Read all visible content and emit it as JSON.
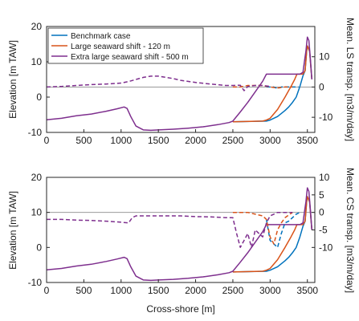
{
  "chart_data": [
    {
      "type": "line",
      "xlabel": "",
      "ylabel": "Elevation [m TAW]",
      "y2label": "Mean. LS transp. [m3/m/day]",
      "xlim": [
        0,
        3600
      ],
      "ylim": [
        -10,
        20
      ],
      "y2lim": [
        -15,
        20
      ],
      "xticks": [
        "0",
        "500",
        "1000",
        "1500",
        "2000",
        "2500",
        "3000",
        "3500"
      ],
      "yticks": [
        "-10",
        "0",
        "10",
        "20"
      ],
      "y2ticks": [
        "-10",
        "0",
        "10"
      ],
      "legend": {
        "placement": "top-left",
        "entries": [
          "Benchmark case",
          "Large seaward shift - 120 m",
          "Extra large seaward shift - 500 m"
        ]
      },
      "series": [
        {
          "name": "Benchmark case",
          "color": "#0072BD",
          "style": "solid",
          "axis": "left",
          "x": [
            2500,
            2950,
            3000,
            3100,
            3200,
            3250,
            3300,
            3350,
            3400,
            3440,
            3470,
            3490,
            3500,
            3530,
            3560
          ],
          "y": [
            -7,
            -6.8,
            -6.5,
            -5.5,
            -3.8,
            -2.8,
            -1.5,
            0,
            3,
            6,
            7.5,
            13,
            14.5,
            13,
            5
          ]
        },
        {
          "name": "Large seaward shift - 120 m",
          "color": "#D95319",
          "style": "solid",
          "axis": "left",
          "x": [
            2500,
            2900,
            2950,
            3000,
            3100,
            3200,
            3280,
            3330,
            3360,
            3400,
            3440,
            3470,
            3490,
            3500,
            3530,
            3560
          ],
          "y": [
            -7,
            -6.8,
            -6.5,
            -6,
            -3.5,
            0,
            3,
            5,
            6.5,
            6.5,
            6.5,
            7.5,
            13,
            14.5,
            13,
            5
          ]
        },
        {
          "name": "Extra large seaward shift - 500 m",
          "color": "#7E2F8E",
          "style": "solid",
          "axis": "left",
          "x": [
            0,
            200,
            400,
            600,
            800,
            950,
            1040,
            1080,
            1130,
            1200,
            1300,
            1400,
            1500,
            1700,
            1900,
            2100,
            2300,
            2450,
            2500,
            2600,
            2700,
            2800,
            2900,
            2950,
            3000,
            3200,
            3400,
            3440,
            3460,
            3480,
            3500,
            3520,
            3540,
            3560
          ],
          "y": [
            -6.4,
            -6,
            -5.3,
            -4.8,
            -4,
            -3.3,
            -2.8,
            -3.2,
            -5.5,
            -8.2,
            -9.3,
            -9.4,
            -9.3,
            -9.1,
            -8.8,
            -8.4,
            -7.8,
            -7.2,
            -6.8,
            -4.2,
            -1.5,
            1.5,
            4.5,
            6.5,
            6.5,
            6.5,
            6.5,
            7,
            10,
            13,
            17,
            16,
            11,
            5
          ]
        },
        {
          "name": "Benchmark case",
          "color": "#0072BD",
          "style": "dashed",
          "axis": "right",
          "x": [
            2950,
            3000,
            3050,
            3100,
            3150,
            3200,
            3250,
            3300,
            3340,
            3380
          ],
          "y": [
            0,
            0,
            0,
            -0.5,
            0,
            0,
            0,
            0,
            0,
            0
          ]
        },
        {
          "name": "Large seaward shift - 120 m",
          "color": "#D95319",
          "style": "dashed",
          "axis": "right",
          "x": [
            2500,
            2600,
            2700,
            2800,
            2900,
            3000,
            3100,
            3200,
            3300
          ],
          "y": [
            0,
            0,
            0.5,
            0.5,
            0.5,
            0,
            -0.3,
            0,
            0
          ]
        },
        {
          "name": "Extra large seaward shift - 500 m",
          "color": "#7E2F8E",
          "style": "dashed",
          "axis": "right",
          "x": [
            0,
            200,
            400,
            600,
            800,
            1000,
            1100,
            1200,
            1300,
            1400,
            1500,
            1600,
            1700,
            1800,
            2000,
            2200,
            2400,
            2500,
            2600,
            2650,
            2700,
            2800,
            2900,
            3000
          ],
          "y": [
            0,
            0.2,
            0.5,
            0.8,
            1,
            1.3,
            1.8,
            2.5,
            3.2,
            3.6,
            3.6,
            3.2,
            2.8,
            2.2,
            1.5,
            1,
            0.5,
            0.5,
            0.6,
            -1.2,
            0.2,
            0.5,
            0.5,
            0.2
          ]
        }
      ]
    },
    {
      "type": "line",
      "xlabel": "Cross-shore [m]",
      "ylabel": "Elevation [m TAW]",
      "y2label": "Mean. CS transp. [m3/m/day]",
      "xlim": [
        0,
        3600
      ],
      "ylim": [
        -10,
        20
      ],
      "y2lim": [
        -20,
        10
      ],
      "xticks": [
        "0",
        "500",
        "1000",
        "1500",
        "2000",
        "2500",
        "3000",
        "3500"
      ],
      "yticks": [
        "-10",
        "0",
        "10",
        "20"
      ],
      "y2ticks": [
        "-10",
        "-5",
        "0",
        "5",
        "10"
      ],
      "series": [
        {
          "name": "Benchmark case",
          "color": "#0072BD",
          "style": "solid",
          "axis": "left",
          "x": [
            2500,
            2950,
            3000,
            3100,
            3200,
            3250,
            3300,
            3350,
            3400,
            3440,
            3470,
            3490,
            3500,
            3530,
            3560
          ],
          "y": [
            -7,
            -6.8,
            -6.5,
            -5.5,
            -3.8,
            -2.8,
            -1.5,
            0,
            3,
            6,
            7.5,
            13,
            14.5,
            13,
            5
          ]
        },
        {
          "name": "Large seaward shift - 120 m",
          "color": "#D95319",
          "style": "solid",
          "axis": "left",
          "x": [
            2500,
            2900,
            2950,
            3000,
            3100,
            3200,
            3280,
            3330,
            3360,
            3400,
            3440,
            3470,
            3490,
            3500,
            3530,
            3560
          ],
          "y": [
            -7,
            -6.8,
            -6.5,
            -6,
            -3.5,
            0,
            3,
            5,
            6.5,
            6.5,
            6.5,
            7.5,
            13,
            14.5,
            13,
            5
          ]
        },
        {
          "name": "Extra large seaward shift - 500 m",
          "color": "#7E2F8E",
          "style": "solid",
          "axis": "left",
          "x": [
            0,
            200,
            400,
            600,
            800,
            950,
            1040,
            1080,
            1130,
            1200,
            1300,
            1400,
            1500,
            1700,
            1900,
            2100,
            2300,
            2450,
            2500,
            2600,
            2700,
            2800,
            2900,
            2950,
            3000,
            3200,
            3400,
            3440,
            3460,
            3480,
            3500,
            3520,
            3540,
            3560
          ],
          "y": [
            -6.4,
            -6,
            -5.3,
            -4.8,
            -4,
            -3.3,
            -2.8,
            -3.2,
            -5.5,
            -8.2,
            -9.3,
            -9.4,
            -9.3,
            -9.1,
            -8.8,
            -8.4,
            -7.8,
            -7.2,
            -6.8,
            -4.2,
            -1.5,
            1.5,
            4.5,
            6.5,
            6.5,
            6.5,
            6.5,
            7,
            10,
            13,
            17,
            16,
            11,
            5
          ]
        },
        {
          "name": "Benchmark case",
          "color": "#0072BD",
          "style": "dashed",
          "axis": "right",
          "x": [
            2950,
            3000,
            3050,
            3100,
            3150,
            3200,
            3250,
            3300,
            3350,
            3400
          ],
          "y": [
            -2,
            -8,
            -9,
            -10,
            -6,
            -3,
            -2.5,
            -1.5,
            -0.5,
            0
          ]
        },
        {
          "name": "Large seaward shift - 120 m",
          "color": "#D95319",
          "style": "dashed",
          "axis": "right",
          "x": [
            2500,
            2600,
            2700,
            2800,
            2900,
            2950,
            3000,
            3050,
            3100,
            3150,
            3200,
            3300
          ],
          "y": [
            0,
            0,
            0,
            -0.5,
            -1,
            -2,
            -7,
            -9,
            -5,
            -3,
            -1.5,
            0
          ]
        },
        {
          "name": "Extra large seaward shift - 500 m",
          "color": "#7E2F8E",
          "style": "dashed",
          "axis": "right",
          "x": [
            0,
            200,
            400,
            600,
            800,
            1000,
            1100,
            1150,
            1200,
            1400,
            1600,
            1800,
            2000,
            2200,
            2400,
            2500,
            2550,
            2600,
            2650,
            2700,
            2750,
            2800,
            2850,
            2900,
            2950,
            3000,
            3050,
            3100,
            3200,
            3300
          ],
          "y": [
            -2,
            -2,
            -2.2,
            -2.3,
            -2.5,
            -2.8,
            -3,
            -1.5,
            -1,
            -1,
            -1,
            -1,
            -1.2,
            -1.3,
            -1.5,
            -1.5,
            -6,
            -10,
            -8,
            -6,
            -10,
            -5,
            -6,
            -7,
            -3,
            -1,
            -0.5,
            0,
            0,
            0
          ]
        }
      ]
    }
  ]
}
